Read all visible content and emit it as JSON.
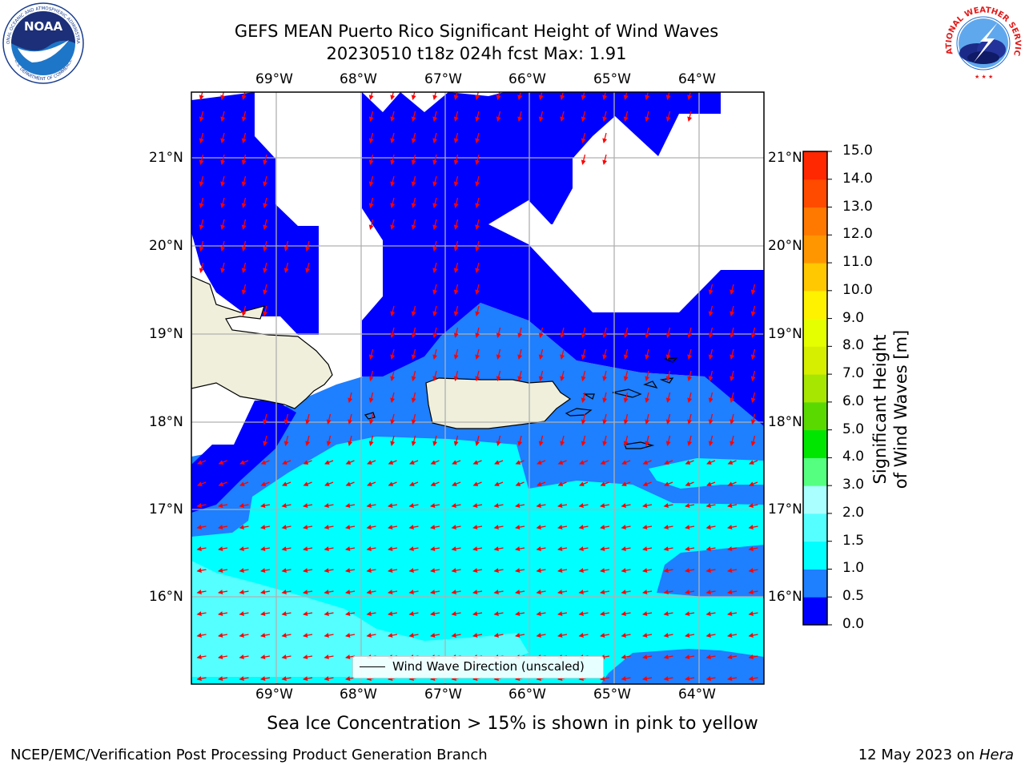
{
  "header": {
    "title_line1": "GEFS MEAN Puerto Rico Significant Height of Wind Waves",
    "title_line2": "20230510 t18z 024h fcst   Max: 1.91"
  },
  "logos": {
    "noaa_text": "NOAA",
    "noaa_ring_top": "NATIONAL OCEANIC AND ATMOSPHERIC ADMINISTRATION",
    "noaa_ring_bottom": "U.S. DEPARTMENT OF COMMERCE",
    "nws_ring": "NATIONAL WEATHER SERVICE"
  },
  "map": {
    "lon_labels": [
      "69°W",
      "68°W",
      "67°W",
      "66°W",
      "65°W",
      "64°W"
    ],
    "lat_labels": [
      "21°N",
      "20°N",
      "19°N",
      "18°N",
      "17°N",
      "16°N"
    ],
    "legend_label": "Wind Wave Direction (unscaled)",
    "land_color": "#efefdc",
    "arrow_color": "#ff0000"
  },
  "colorbar": {
    "title": "Significant Height of Wind Waves [m]",
    "tick_labels": [
      "0.0",
      "0.5",
      "1.0",
      "1.5",
      "2.0",
      "3.0",
      "4.0",
      "5.0",
      "6.0",
      "7.0",
      "8.0",
      "9.0",
      "10.0",
      "11.0",
      "12.0",
      "13.0",
      "14.0",
      "15.0"
    ],
    "colors": [
      "#0000ff",
      "#1e7fff",
      "#00ffff",
      "#55ffff",
      "#aaffff",
      "#55ff80",
      "#00e600",
      "#59d900",
      "#a6e600",
      "#d6ee00",
      "#e6ff00",
      "#fff200",
      "#ffc800",
      "#ff9600",
      "#ff7800",
      "#ff4b00",
      "#ff2800",
      "#ff0000"
    ]
  },
  "caption": "Sea Ice Concentration > 15% is shown in pink to yellow",
  "footer": {
    "left": "NCEP/EMC/Verification Post Processing Product Generation Branch",
    "right_date": "12 May 2023 on ",
    "right_host": "Hera"
  }
}
